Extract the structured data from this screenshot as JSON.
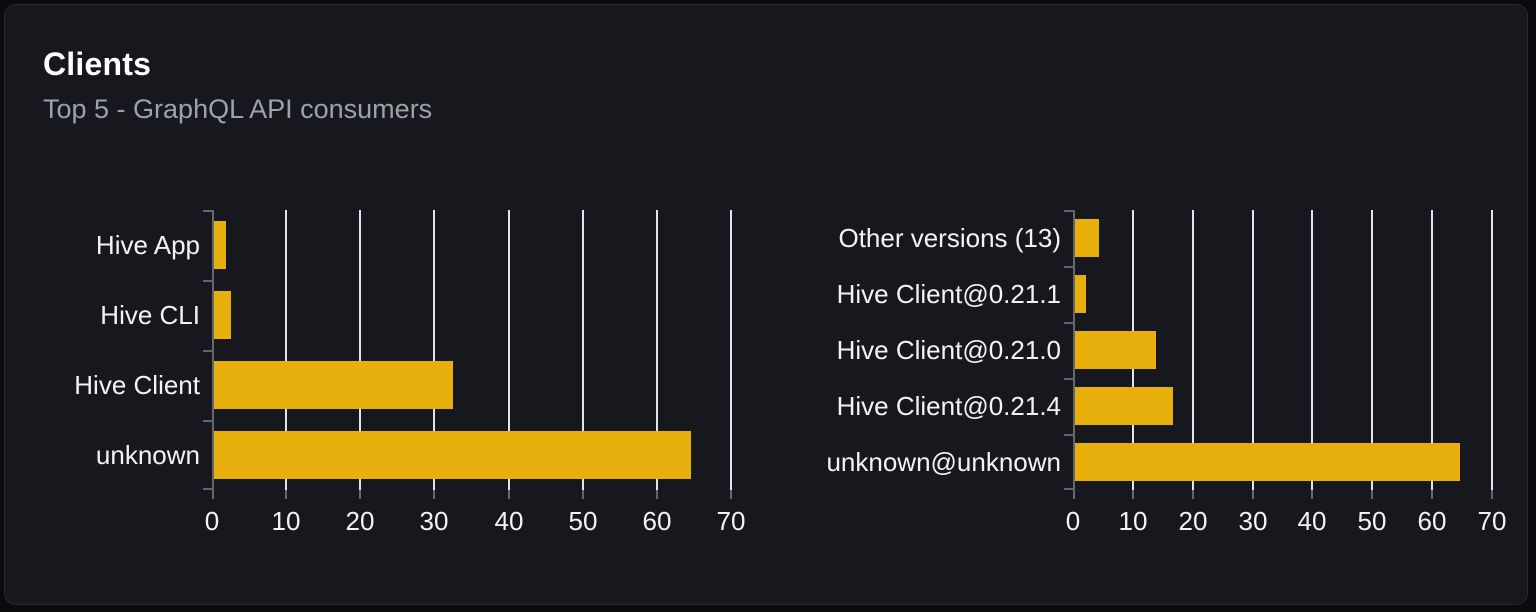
{
  "header": {
    "title": "Clients",
    "subtitle": "Top 5 - GraphQL API consumers"
  },
  "colors": {
    "page_bg": "#0A0B0D",
    "card_bg": "#16181D",
    "card_border": "#26292F",
    "bar": "#E8B00C",
    "grid": "#E1E4F0",
    "axis": "#63666E",
    "label": "#F2F3F5",
    "title": "#FFFFFF",
    "subtitle": "#9CA1AA"
  },
  "chart_data": [
    {
      "type": "bar",
      "orientation": "horizontal",
      "title": "",
      "xlabel": "",
      "ylabel": "",
      "categories": [
        "Hive App",
        "Hive CLI",
        "Hive Client",
        "unknown"
      ],
      "values": [
        1.6,
        2.3,
        32.2,
        64.3
      ],
      "xlim": [
        0,
        70
      ],
      "xticks": [
        0,
        10,
        20,
        30,
        40,
        50,
        60,
        70
      ],
      "grid": "vertical-only",
      "legend": "none",
      "bar_color": "#E8B00C"
    },
    {
      "type": "bar",
      "orientation": "horizontal",
      "title": "",
      "xlabel": "",
      "ylabel": "",
      "categories": [
        "Other versions (13)",
        "Hive Client@0.21.1",
        "Hive Client@0.21.0",
        "Hive Client@0.21.4",
        "unknown@unknown"
      ],
      "values": [
        4.0,
        1.9,
        13.6,
        16.3,
        64.3
      ],
      "xlim": [
        0,
        70
      ],
      "xticks": [
        0,
        10,
        20,
        30,
        40,
        50,
        60,
        70
      ],
      "grid": "vertical-only",
      "legend": "none",
      "bar_color": "#E8B00C"
    }
  ]
}
